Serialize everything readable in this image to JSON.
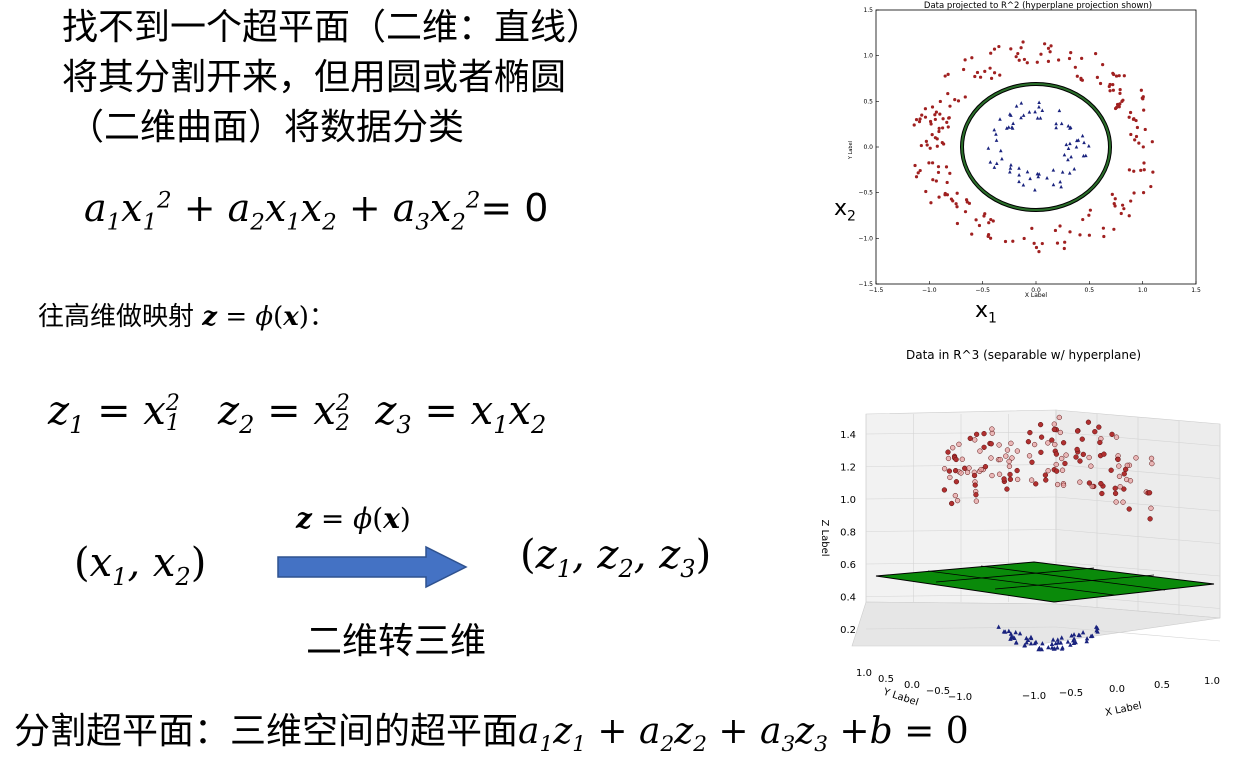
{
  "heading": {
    "line1": "找不到一个超平面（二维：直线）",
    "line2": "将其分割开来，但用圆或者椭圆",
    "line3": "（二维曲面）将数据分类"
  },
  "equation_conic": {
    "rhs": "= 0"
  },
  "mapping_label": "往高维做映射",
  "mapping_colon": "：",
  "arrow_caption": "二维转三维",
  "bottom_text": "分割超平面：三维空间的超平面",
  "plot2d": {
    "title": "Data projected to R^2 (hyperplane projection shown)",
    "xlabel": "X Label",
    "ylabel": "Y Label",
    "x_ticks": [
      "−1.5",
      "−1.0",
      "−0.5",
      "0.0",
      "0.5",
      "1.0",
      "1.5"
    ],
    "y_ticks": [
      "1.5",
      "1.0",
      "0.5",
      "0.0",
      "−0.5",
      "−1.0",
      "−1.5"
    ],
    "outer_label_x": "x",
    "outer_label_x_sub": "1",
    "outer_label_y": "x",
    "outer_label_y_sub": "2",
    "colors": {
      "outer": "#a02020",
      "inner": "#1a237e",
      "circle": "#2a6e2a"
    }
  },
  "plot3d": {
    "title": "Data in R^3 (separable w/ hyperplane)",
    "zlabel": "Z Label",
    "xlabel": "X Label",
    "ylabel": "Y Label",
    "z_ticks": [
      "1.4",
      "1.2",
      "1.0",
      "0.8",
      "0.6",
      "0.4",
      "0.2"
    ],
    "x_ticks": [
      "−1.0",
      "−0.5",
      "0.0",
      "0.5",
      "1.0"
    ],
    "y_ticks": [
      "1.0",
      "0.5",
      "0.0",
      "−0.5",
      "−1.0"
    ],
    "colors": {
      "plane": "#0a8a0a",
      "upper": "#b03030",
      "lower": "#1a237e"
    }
  },
  "chart_data": [
    {
      "type": "scatter",
      "title": "Data projected to R^2 (hyperplane projection shown)",
      "xlabel": "X Label",
      "ylabel": "Y Label",
      "xlim": [
        -1.5,
        1.5
      ],
      "ylim": [
        -1.5,
        1.5
      ],
      "series": [],
      "circle_radius": 0.7
    },
    {
      "type": "scatter",
      "title": "Data in R^3 (separable w/ hyperplane)",
      "xlabel": "X Label",
      "ylabel": "Y Label",
      "zlabel": "Z Label",
      "xlim": [
        -1.0,
        1.0
      ],
      "ylim": [
        -1.0,
        1.0
      ],
      "zlim": [
        0.2,
        1.4
      ],
      "plane_z": 0.7
    }
  ]
}
